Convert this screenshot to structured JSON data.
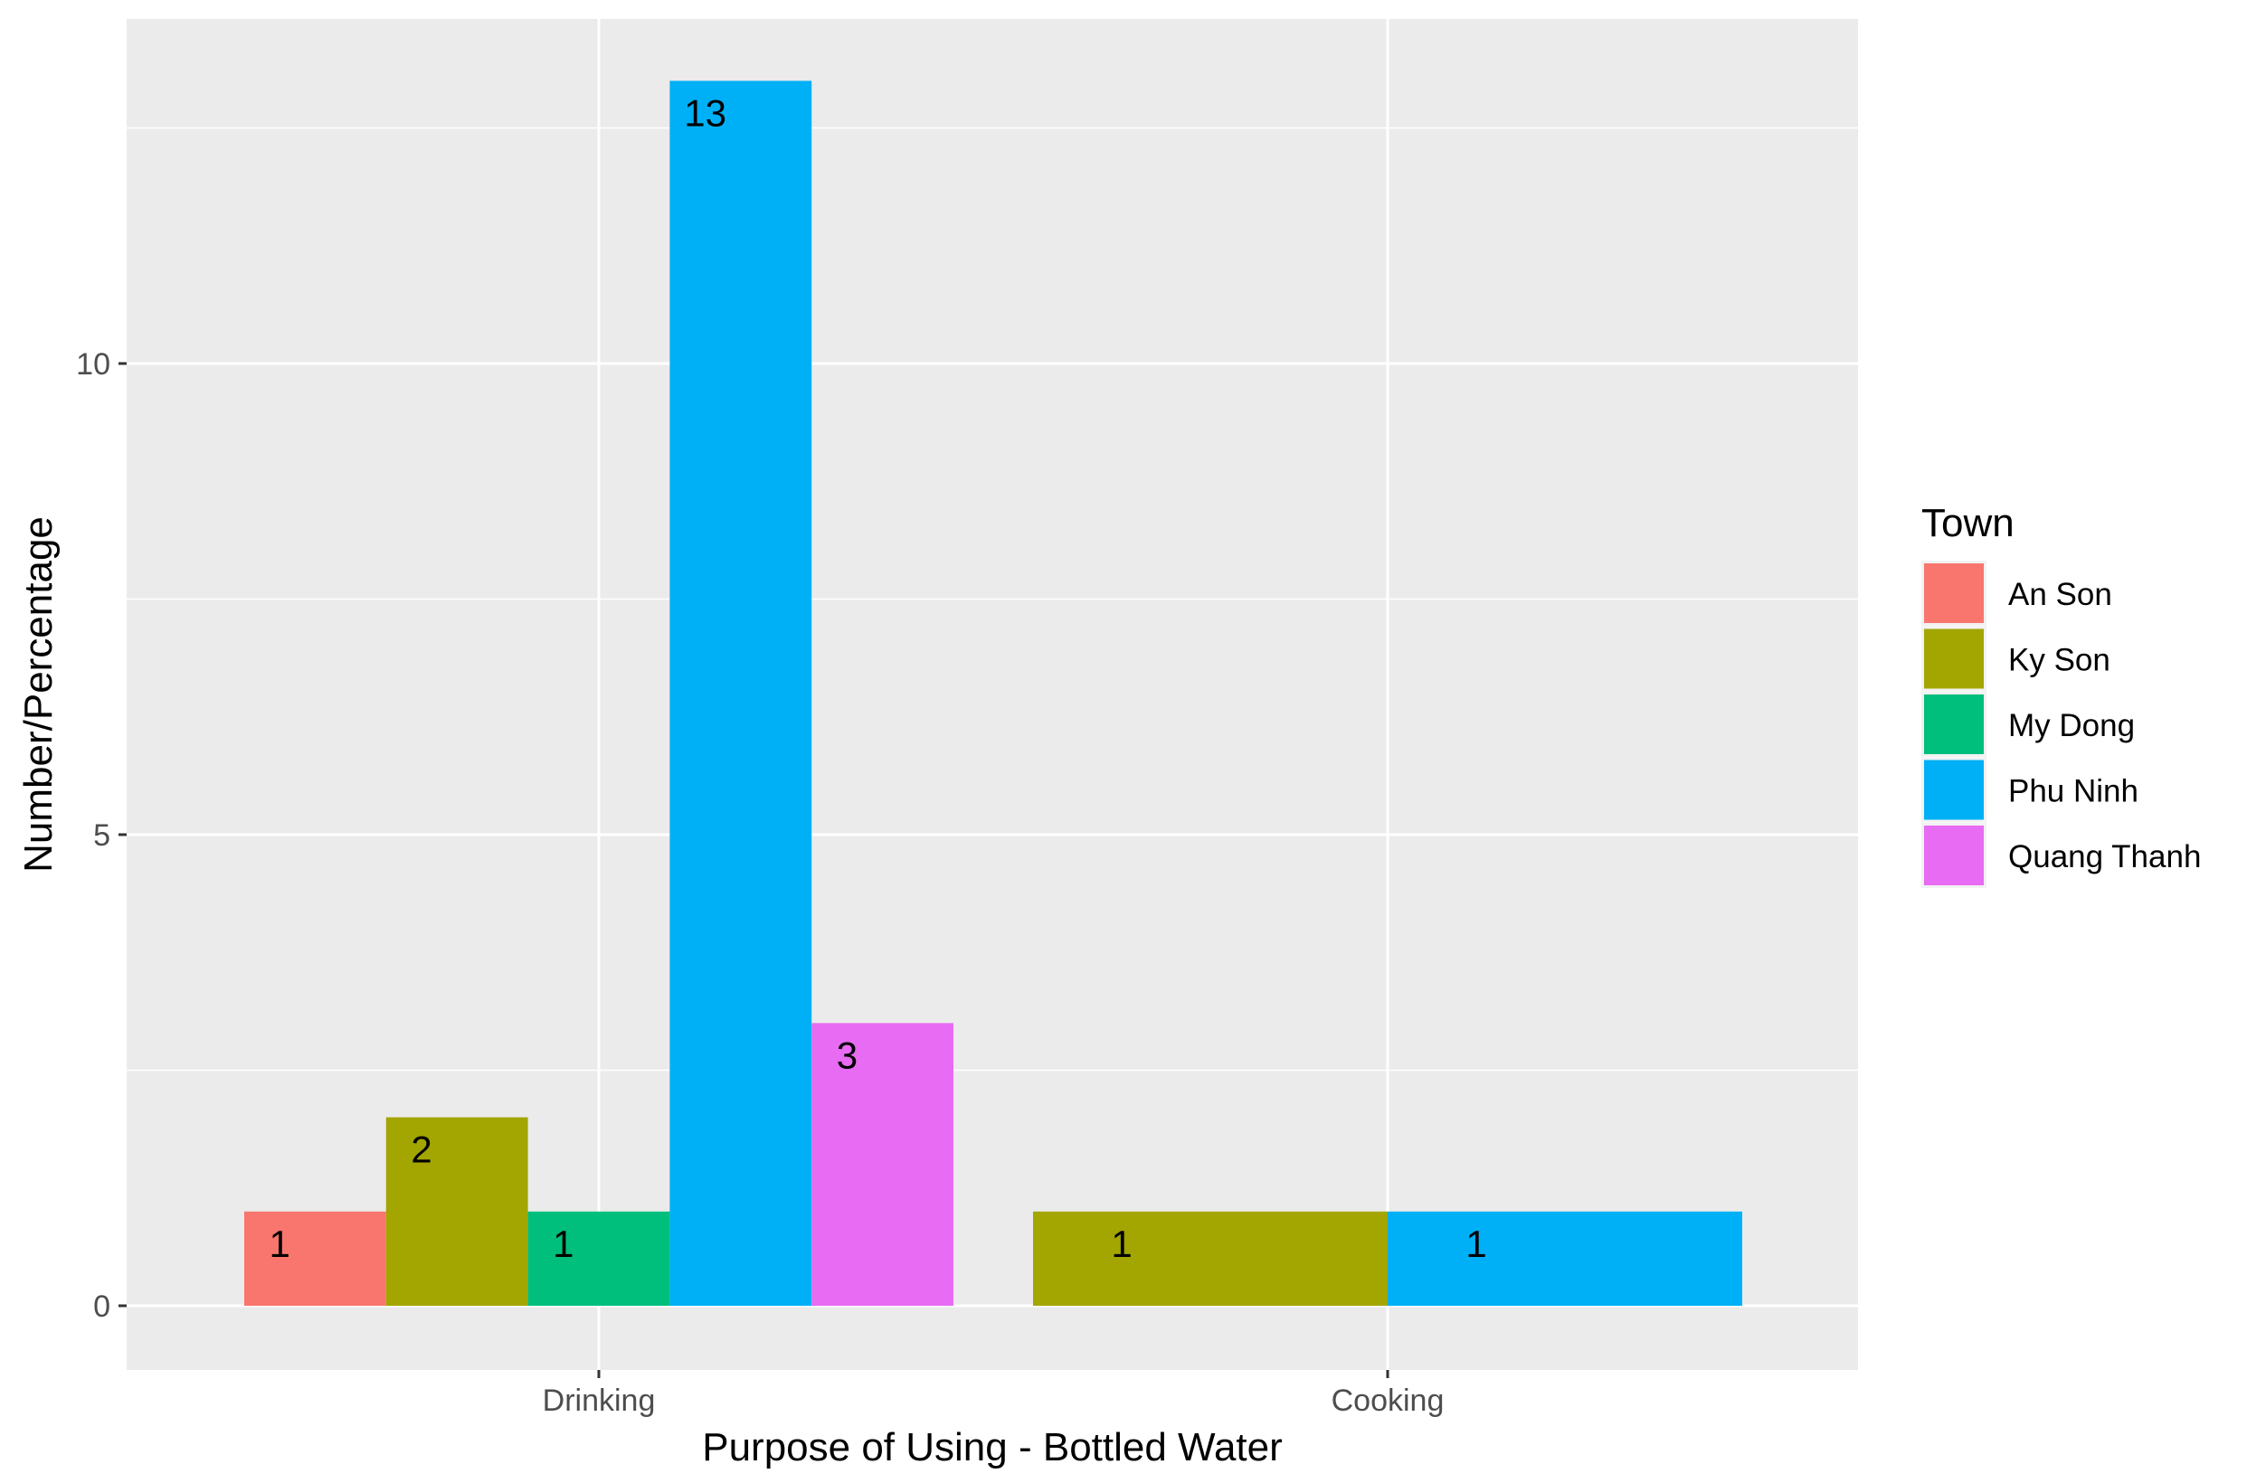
{
  "chart_data": {
    "type": "bar",
    "position": "dodge",
    "categories": [
      "Drinking",
      "Cooking"
    ],
    "xlabel": "Purpose of Using - Bottled Water",
    "ylabel": "Number/Percentage",
    "ylim": [
      -0.6,
      13.8
    ],
    "yticks": [
      0,
      5,
      10
    ],
    "grid": true,
    "legend": {
      "title": "Town",
      "position": "right"
    },
    "series": [
      {
        "name": "An Son",
        "color": "#F8766D",
        "values": [
          1,
          null
        ]
      },
      {
        "name": "Ky Son",
        "color": "#A3A500",
        "values": [
          2,
          1
        ]
      },
      {
        "name": "My Dong",
        "color": "#00BF7D",
        "values": [
          1,
          null
        ]
      },
      {
        "name": "Phu Ninh",
        "color": "#00B0F6",
        "values": [
          13,
          1
        ]
      },
      {
        "name": "Quang Thanh",
        "color": "#E76BF3",
        "values": [
          3,
          null
        ]
      }
    ]
  }
}
